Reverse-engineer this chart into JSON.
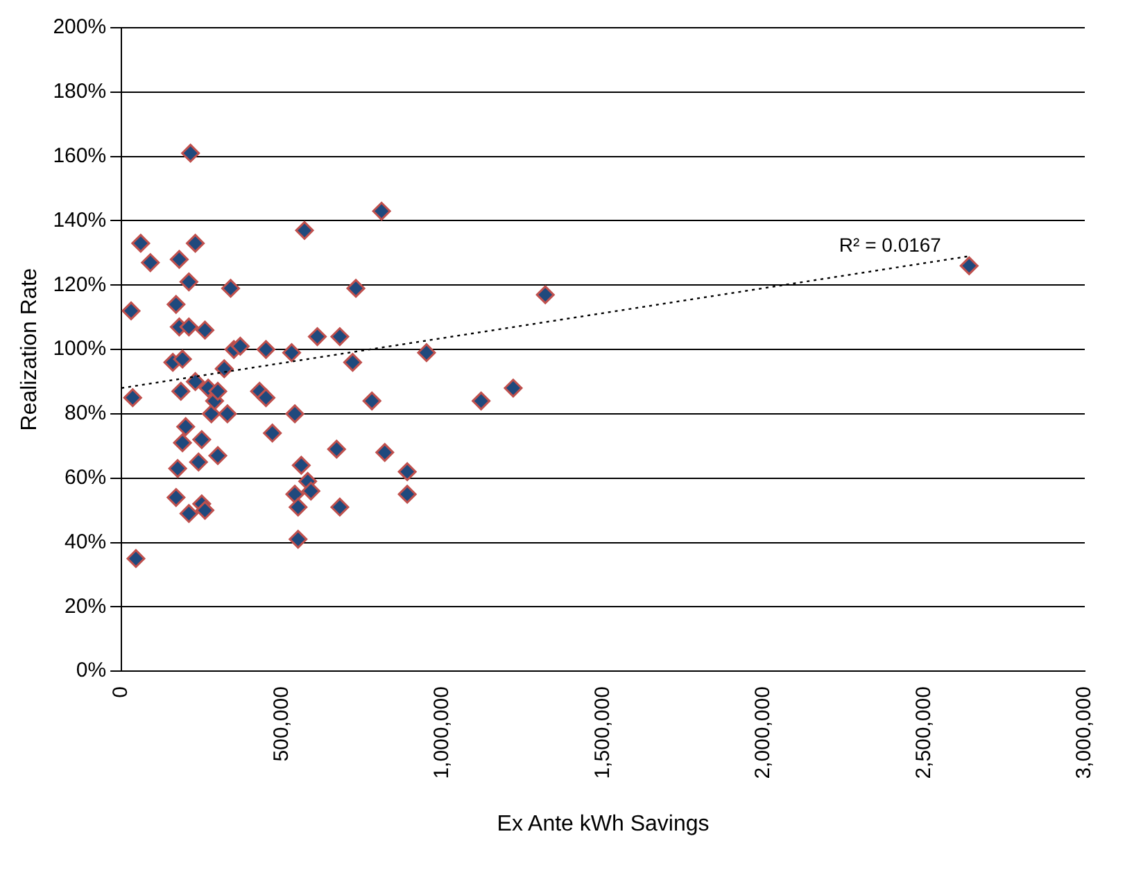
{
  "chart_data": {
    "type": "scatter",
    "xlabel": "Ex Ante kWh Savings",
    "ylabel": "Realization Rate",
    "grid": "y",
    "legend": false,
    "marker": "diamond",
    "xlim": [
      0,
      3000000
    ],
    "xticks": [
      0,
      {
        "value": 500000,
        "label": "500,000"
      },
      {
        "value": 1000000,
        "label": "1,000,000"
      },
      {
        "value": 1500000,
        "label": "1,500,000"
      },
      {
        "value": 2000000,
        "label": "2,000,000"
      },
      {
        "value": 2500000,
        "label": "2,500,000"
      },
      {
        "value": 3000000,
        "label": "3,000,000"
      }
    ],
    "ylim": [
      0,
      200
    ],
    "yticks": [
      {
        "value": 0,
        "label": "0%"
      },
      {
        "value": 20,
        "label": "20%"
      },
      {
        "value": 40,
        "label": "40%"
      },
      {
        "value": 60,
        "label": "60%"
      },
      {
        "value": 80,
        "label": "80%"
      },
      {
        "value": 100,
        "label": "100%"
      },
      {
        "value": 120,
        "label": "120%"
      },
      {
        "value": 140,
        "label": "140%"
      },
      {
        "value": 160,
        "label": "160%"
      },
      {
        "value": 180,
        "label": "180%"
      },
      {
        "value": 200,
        "label": "200%"
      }
    ],
    "series": [
      {
        "color": "#1f497d",
        "x": [
          30000,
          35000,
          45000,
          60000,
          90000,
          160000,
          170000,
          180000,
          180000,
          190000,
          185000,
          175000,
          170000,
          190000,
          200000,
          210000,
          210000,
          210000,
          215000,
          230000,
          230000,
          240000,
          250000,
          250000,
          260000,
          260000,
          270000,
          280000,
          290000,
          300000,
          300000,
          320000,
          330000,
          340000,
          350000,
          370000,
          430000,
          450000,
          450000,
          470000,
          530000,
          540000,
          540000,
          550000,
          550000,
          560000,
          570000,
          580000,
          590000,
          610000,
          670000,
          680000,
          680000,
          720000,
          730000,
          780000,
          810000,
          820000,
          890000,
          890000,
          950000,
          1120000,
          1220000,
          1320000,
          2640000
        ],
        "values": [
          112,
          85,
          35,
          133,
          127,
          96,
          114,
          128,
          107,
          97,
          87,
          63,
          54,
          71,
          76,
          121,
          107,
          49,
          161,
          133,
          90,
          65,
          72,
          52,
          106,
          50,
          88,
          80,
          84,
          67,
          87,
          94,
          80,
          119,
          100,
          101,
          87,
          85,
          100,
          74,
          99,
          80,
          55,
          51,
          41,
          64,
          137,
          59,
          56,
          104,
          69,
          104,
          51,
          96,
          119,
          84,
          143,
          68,
          62,
          55,
          99,
          84,
          88,
          117,
          126
        ]
      },
      {
        "type": "line",
        "color": "#000000",
        "line_style": "dotted",
        "marker": "none",
        "x": [
          0,
          2640000
        ],
        "values": [
          88,
          129
        ]
      }
    ],
    "annotations": [
      "R² = 0.0167"
    ]
  }
}
